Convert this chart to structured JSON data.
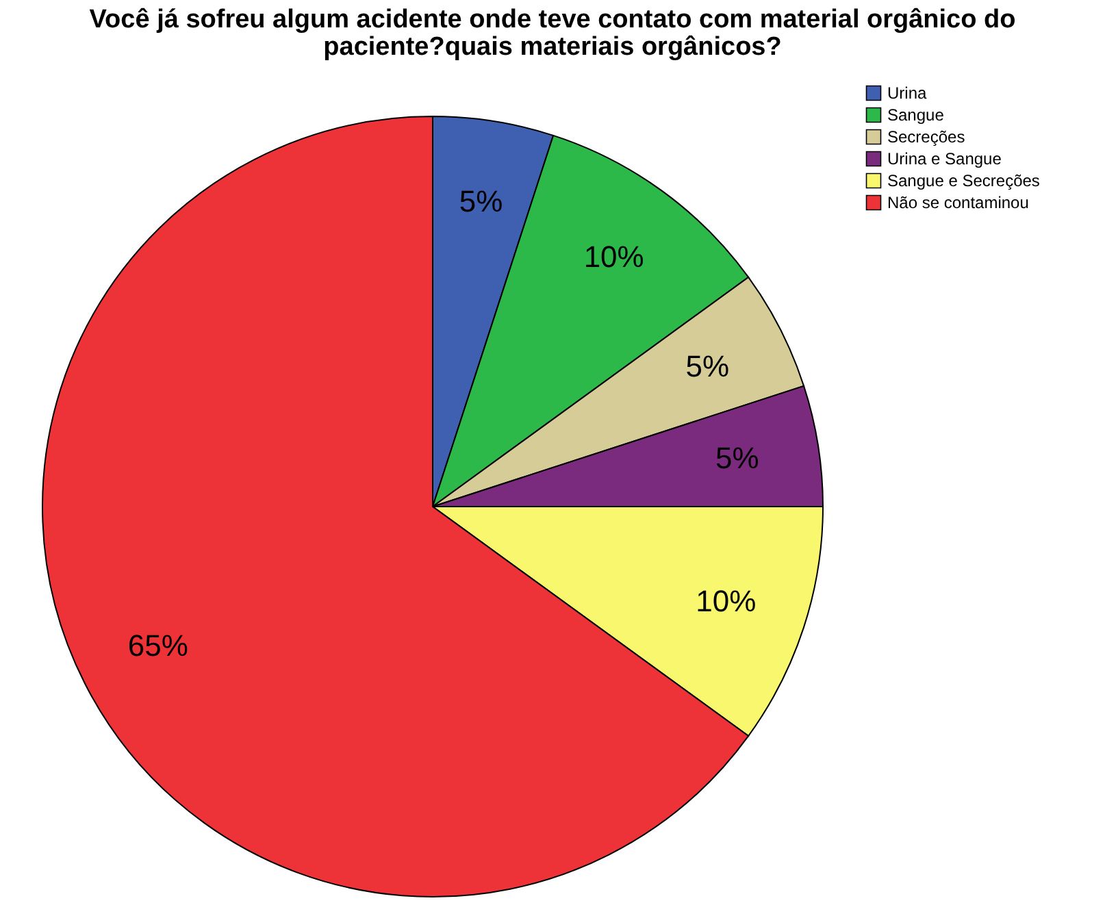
{
  "chart_data": {
    "type": "pie",
    "title": "Você já sofreu algum acidente onde teve contato com material orgânico do paciente?quais materiais orgânicos?",
    "categories": [
      "Urina",
      "Sangue",
      "Secreções",
      "Urina e Sangue",
      "Sangue e Secreções",
      "Não se contaminou"
    ],
    "values": [
      5,
      10,
      5,
      5,
      10,
      65
    ],
    "colors": [
      "#3f5fb0",
      "#2db84a",
      "#d6cc98",
      "#7b2b7e",
      "#f8f76e",
      "#ee3338"
    ],
    "value_labels": [
      "5%",
      "10%",
      "5%",
      "5%",
      "10%",
      "65%"
    ],
    "legend": "top right"
  }
}
